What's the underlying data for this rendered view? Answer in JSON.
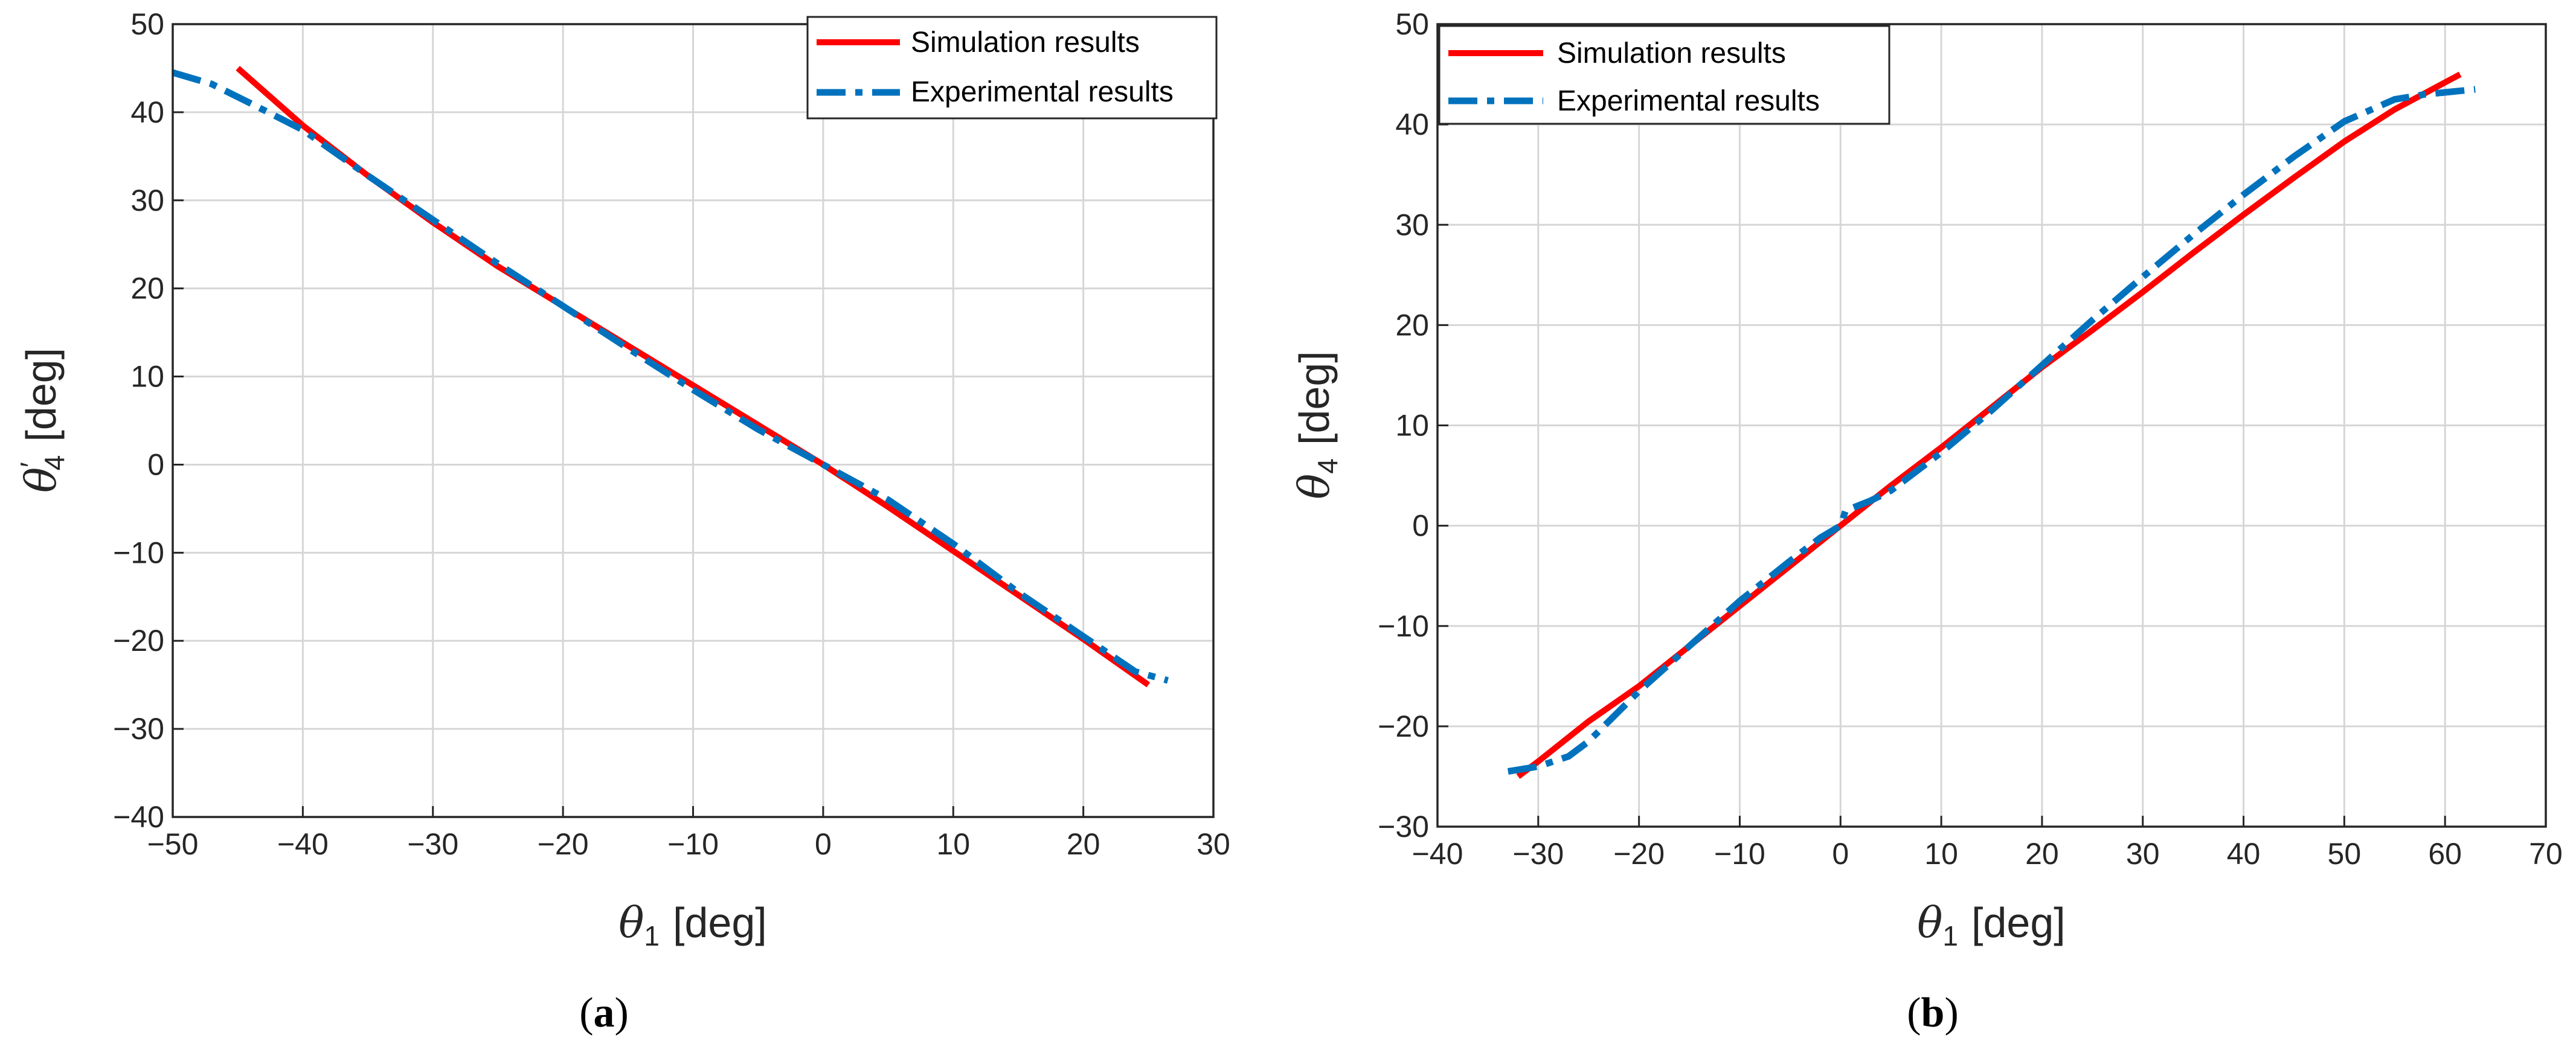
{
  "chart_data": [
    {
      "type": "line",
      "panel": "a",
      "caption_open": "(",
      "caption_letter": "a",
      "caption_close": ")",
      "xlabel_symbol": "θ",
      "xlabel_sub": "1",
      "xlabel_unit": "[deg]",
      "ylabel_symbol": "θ",
      "ylabel_prime": "′",
      "ylabel_sub": "4",
      "ylabel_unit": "[deg]",
      "xlim": [
        -50,
        30
      ],
      "ylim": [
        -40,
        50
      ],
      "xticks": [
        -50,
        -40,
        -30,
        -20,
        -10,
        0,
        10,
        20,
        30
      ],
      "yticks": [
        -40,
        -30,
        -20,
        -10,
        0,
        10,
        20,
        30,
        40,
        50
      ],
      "xtick_labels": [
        "−50",
        "−40",
        "−30",
        "−20",
        "−10",
        "0",
        "10",
        "20",
        "30"
      ],
      "ytick_labels": [
        "−40",
        "−30",
        "−20",
        "−10",
        "0",
        "10",
        "20",
        "30",
        "40",
        "50"
      ],
      "grid": true,
      "legend_position": "top-right",
      "series": [
        {
          "name": "Simulation results",
          "color": "#ff0000",
          "style": "solid",
          "x": [
            -45,
            -40,
            -35,
            -30,
            -25,
            -20,
            -15,
            -10,
            -5,
            0,
            5,
            10,
            15,
            20,
            25
          ],
          "y": [
            45,
            38.5,
            32.8,
            27.5,
            22.5,
            18,
            13.5,
            9,
            4.5,
            0,
            -4.8,
            -9.8,
            -14.8,
            -19.8,
            -25
          ]
        },
        {
          "name": "Experimental results",
          "color": "#0072bd",
          "style": "dashdot",
          "x": [
            -50,
            -47,
            -44,
            -40,
            -35,
            -30,
            -25,
            -20,
            -15,
            -10,
            -5,
            0,
            5,
            10,
            15,
            20,
            24,
            26.5
          ],
          "y": [
            44.5,
            43.2,
            41,
            38,
            32.8,
            27.8,
            22.8,
            18,
            13.2,
            8.5,
            4,
            0,
            -4,
            -9,
            -14.5,
            -19.5,
            -23.5,
            -24.5
          ]
        }
      ]
    },
    {
      "type": "line",
      "panel": "b",
      "caption_open": "(",
      "caption_letter": "b",
      "caption_close": ")",
      "xlabel_symbol": "θ",
      "xlabel_sub": "1",
      "xlabel_unit": "[deg]",
      "ylabel_symbol": "θ",
      "ylabel_prime": "",
      "ylabel_sub": "4",
      "ylabel_unit": "[deg]",
      "xlim": [
        -40,
        70
      ],
      "ylim": [
        -30,
        50
      ],
      "xticks": [
        -40,
        -30,
        -20,
        -10,
        0,
        10,
        20,
        30,
        40,
        50,
        60,
        70
      ],
      "yticks": [
        -30,
        -20,
        -10,
        0,
        10,
        20,
        30,
        40,
        50
      ],
      "xtick_labels": [
        "−40",
        "−30",
        "−20",
        "−10",
        "0",
        "10",
        "20",
        "30",
        "40",
        "50",
        "60",
        "70"
      ],
      "ytick_labels": [
        "−30",
        "−20",
        "−10",
        "0",
        "10",
        "20",
        "30",
        "40",
        "50"
      ],
      "grid": true,
      "legend_position": "top-left",
      "series": [
        {
          "name": "Simulation results",
          "color": "#ff0000",
          "style": "solid",
          "x": [
            -32,
            -30,
            -25,
            -20,
            -15,
            -10,
            -5,
            0,
            5,
            10,
            15,
            20,
            25,
            30,
            35,
            40,
            45,
            50,
            55,
            61.5
          ],
          "y": [
            -25,
            -23.5,
            -19.5,
            -16,
            -12,
            -8,
            -4,
            0,
            4,
            7.8,
            11.8,
            15.8,
            19.5,
            23.3,
            27.2,
            31,
            34.7,
            38.3,
            41.5,
            45
          ]
        },
        {
          "name": "Experimental results",
          "color": "#0072bd",
          "style": "dashdot",
          "x": [
            -33,
            -30,
            -27,
            -25,
            -22,
            -20,
            -15,
            -10,
            -5,
            -2,
            0,
            0.5,
            3,
            5,
            10,
            15,
            20,
            25,
            30,
            35,
            40,
            45,
            50,
            55,
            58,
            63
          ],
          "y": [
            -24.5,
            -24,
            -23,
            -21.5,
            -18.5,
            -16.5,
            -12,
            -7.5,
            -3.5,
            -1.2,
            0,
            1.5,
            2.5,
            3.5,
            7.3,
            11.5,
            16,
            20.5,
            24.8,
            29,
            33,
            36.8,
            40.3,
            42.5,
            43,
            43.5
          ]
        }
      ]
    }
  ]
}
